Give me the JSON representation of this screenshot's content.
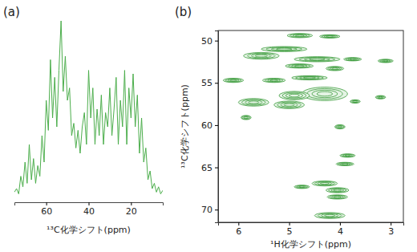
{
  "chart_data": [
    {
      "type": "line",
      "title": "(a)",
      "x_label": "¹³C化学シフト(ppm)",
      "x": [
        75,
        74,
        73,
        72,
        71,
        70,
        69,
        68,
        67,
        66,
        65,
        64,
        63,
        62,
        61,
        60,
        59,
        58,
        57,
        56,
        55,
        54,
        53,
        52,
        51,
        50,
        49,
        48,
        47,
        46,
        45,
        44,
        43,
        42,
        41,
        40,
        39,
        38,
        37,
        36,
        35,
        34,
        33,
        32,
        31,
        30,
        29,
        28,
        27,
        26,
        25,
        24,
        23,
        22,
        21,
        20,
        19,
        18,
        17,
        16,
        15,
        14,
        13,
        12,
        11,
        10,
        9,
        8,
        7,
        6,
        5
      ],
      "values": [
        3,
        5,
        2,
        12,
        6,
        20,
        8,
        30,
        10,
        22,
        8,
        18,
        12,
        35,
        20,
        55,
        38,
        78,
        45,
        68,
        40,
        72,
        100,
        60,
        80,
        55,
        62,
        35,
        42,
        28,
        38,
        25,
        40,
        48,
        30,
        72,
        45,
        62,
        30,
        50,
        35,
        58,
        30,
        48,
        40,
        62,
        35,
        50,
        68,
        30,
        55,
        40,
        72,
        30,
        62,
        45,
        70,
        40,
        58,
        25,
        45,
        20,
        28,
        10,
        15,
        5,
        8,
        3,
        6,
        2,
        4
      ],
      "color": "#4cae4c",
      "xlim": [
        75,
        5
      ],
      "xticks": [
        60,
        40,
        20
      ],
      "ylim": [
        0,
        105
      ],
      "tick_labels": "x"
    },
    {
      "type": "contour",
      "title": "(b)",
      "x_label": "¹H化学シフト(ppm)",
      "y_label": "¹³C化学シフト(ppm)",
      "x": [
        4.79,
        4.2,
        5.55,
        5.1,
        4.45,
        3.75,
        3.1,
        4.1,
        4.8,
        6.1,
        5.3,
        4.6,
        4.3,
        4.9,
        5.7,
        5.0,
        3.7,
        3.2,
        5.85,
        4.0,
        3.85,
        3.9,
        4.75,
        4.3,
        4.05,
        4.05,
        4.2
      ],
      "y": [
        49.4,
        49.5,
        51.8,
        51.0,
        52.2,
        52.2,
        52.4,
        53.3,
        53.0,
        54.7,
        54.7,
        54.4,
        56.3,
        56.5,
        57.3,
        57.6,
        57.2,
        56.7,
        59.1,
        60.2,
        63.6,
        64.6,
        67.3,
        66.9,
        67.7,
        68.5,
        70.7
      ],
      "x_width": [
        0.5,
        0.4,
        0.7,
        0.9,
        0.9,
        0.35,
        0.3,
        0.35,
        0.55,
        0.4,
        0.45,
        0.7,
        0.9,
        0.6,
        0.6,
        0.6,
        0.2,
        0.2,
        0.2,
        0.2,
        0.3,
        0.35,
        0.3,
        0.5,
        0.45,
        0.4,
        0.6
      ],
      "y_width": [
        0.5,
        0.4,
        0.8,
        0.6,
        0.6,
        0.4,
        0.4,
        0.5,
        0.5,
        0.5,
        0.5,
        0.5,
        1.6,
        1.0,
        0.9,
        0.9,
        0.4,
        0.4,
        0.5,
        0.5,
        0.4,
        0.4,
        0.4,
        0.6,
        0.6,
        0.5,
        0.7
      ],
      "color": "#3c9c3c",
      "xlim": [
        6.4,
        2.75
      ],
      "xticks": [
        6,
        5,
        4,
        3
      ],
      "ylim": [
        48.8,
        71.5
      ],
      "yticks": [
        50,
        55,
        60,
        65,
        70
      ]
    }
  ]
}
